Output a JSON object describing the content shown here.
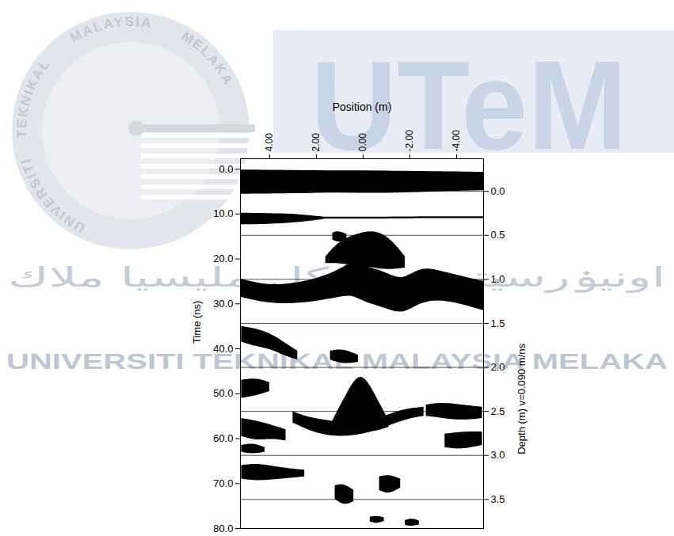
{
  "chart_data": {
    "type": "area",
    "x_label": "Position (m)",
    "y_label": "Time (ns)",
    "y2_label": "Depth (m) v=0.090 m/ns",
    "xlim": [
      5.25,
      -5.15
    ],
    "xticks": [
      {
        "value": 4,
        "label": "4.00"
      },
      {
        "value": 2,
        "label": "2.00"
      },
      {
        "value": 0,
        "label": "0.00"
      },
      {
        "value": -2,
        "label": "-2.00"
      },
      {
        "value": -4,
        "label": "-4.00"
      }
    ],
    "ylim": [
      -2.3,
      80
    ],
    "yticks": [
      {
        "value": 0,
        "label": "0.0"
      },
      {
        "value": 10,
        "label": "10.0"
      },
      {
        "value": 20,
        "label": "20.0"
      },
      {
        "value": 30,
        "label": "30.0"
      },
      {
        "value": 40,
        "label": "40.0"
      },
      {
        "value": 50,
        "label": "50.0"
      },
      {
        "value": 60,
        "label": "60.0"
      },
      {
        "value": 70,
        "label": "70.0"
      },
      {
        "value": 80,
        "label": "80.0"
      }
    ],
    "y2lim": [
      -0.37,
      3.83
    ],
    "y2ticks": [
      {
        "value": 0,
        "label": "0.0"
      },
      0.5,
      {
        "value": 1,
        "label": "1.0"
      },
      1.5,
      {
        "value": 2,
        "label": "2.0"
      },
      2.5,
      {
        "value": 3,
        "label": "3.0"
      },
      3.5
    ],
    "grid": true,
    "color": "#000000",
    "series": [
      {
        "x": [
          5.25,
          3,
          1,
          -1,
          -3,
          -5.15
        ],
        "y1": [
          0.2,
          0.3,
          0.4,
          0.4,
          0.6,
          0.7
        ],
        "y2": [
          5.6,
          5.5,
          5.2,
          5.5,
          5.0,
          4.8
        ]
      },
      {
        "x": [
          5.25,
          4,
          3,
          2.2,
          1.6
        ],
        "y1": [
          9.8,
          9.9,
          10.0,
          10.4,
          10.7
        ],
        "y2": [
          12.4,
          12.3,
          12.0,
          11.6,
          11.1
        ]
      },
      {
        "x": [
          1.6,
          -1,
          -3,
          -5.15
        ],
        "y1": [
          10.7,
          10.7,
          10.6,
          10.6
        ],
        "y2": [
          11.1,
          11.1,
          11.0,
          11.0
        ]
      },
      {
        "x": [
          5.25,
          4,
          3,
          2,
          1,
          0.5,
          0,
          -1,
          -1.7,
          -2.5,
          -3.5,
          -5.15
        ],
        "y1": [
          24.5,
          26,
          25.5,
          24.5,
          22.5,
          20.5,
          21.5,
          23,
          25,
          21.5,
          23,
          25
        ],
        "y2": [
          28.5,
          30,
          30,
          29.5,
          28.5,
          28,
          29.5,
          31,
          32.5,
          29.5,
          29,
          31.5
        ]
      },
      {
        "x": [
          1.6,
          1.0,
          0.3,
          -0.5,
          -1.2,
          -1.8
        ],
        "y1": [
          19.5,
          16,
          14.5,
          13.5,
          15.5,
          19.5
        ],
        "y2": [
          21,
          21,
          21.5,
          22,
          22.5,
          22
        ]
      },
      {
        "x": [
          1.3,
          1.0,
          0.7
        ],
        "y1": [
          14.2,
          13.8,
          14.5
        ],
        "y2": [
          15.8,
          16.5,
          15.6
        ]
      },
      {
        "x": [
          5.2,
          4.6,
          4.0,
          3.4,
          2.8
        ],
        "y1": [
          35,
          35.5,
          36.5,
          38.5,
          40.5
        ],
        "y2": [
          38.5,
          39.5,
          40,
          41.5,
          42.5
        ]
      },
      {
        "x": [
          1.4,
          0.8,
          0.2
        ],
        "y1": [
          40.5,
          40,
          41.5
        ],
        "y2": [
          42.5,
          43.5,
          43
        ]
      },
      {
        "x": [
          5.2,
          4.6,
          4.0
        ],
        "y1": [
          47,
          46.5,
          47.5
        ],
        "y2": [
          51,
          50.5,
          49.5
        ]
      },
      {
        "x": [
          1.3,
          0.7,
          0.1,
          -0.5,
          -1.1
        ],
        "y1": [
          56,
          50,
          44.5,
          50,
          56
        ],
        "y2": [
          57.5,
          58.5,
          58.5,
          58.5,
          57.5
        ]
      },
      {
        "x": [
          3.0,
          2.2,
          1.4,
          0.5,
          -0.5,
          -1.6,
          -2.6
        ],
        "y1": [
          54,
          55.5,
          56,
          57,
          56,
          53.5,
          53
        ],
        "y2": [
          56.5,
          58.5,
          59.5,
          59.5,
          58.5,
          56,
          55
        ]
      },
      {
        "x": [
          -2.7,
          -3.4,
          -4.2,
          -5.1
        ],
        "y1": [
          52.5,
          52,
          52.5,
          53
        ],
        "y2": [
          55,
          55.5,
          56,
          55.5
        ]
      },
      {
        "x": [
          -3.5,
          -4.2,
          -5.1
        ],
        "y1": [
          59,
          58.5,
          58.5
        ],
        "y2": [
          62,
          62.5,
          61.5
        ]
      },
      {
        "x": [
          5.2,
          4.6,
          3.9,
          3.3
        ],
        "y1": [
          55.5,
          56,
          57,
          58
        ],
        "y2": [
          59.5,
          60.5,
          60,
          60.5
        ]
      },
      {
        "x": [
          5.2,
          4.7,
          4.2
        ],
        "y1": [
          61.5,
          61,
          62
        ],
        "y2": [
          63,
          63.5,
          63
        ]
      },
      {
        "x": [
          5.2,
          4.5,
          3.5,
          2.5
        ],
        "y1": [
          66,
          65.5,
          66.5,
          67
        ],
        "y2": [
          69,
          69.5,
          69,
          68.5
        ]
      },
      {
        "x": [
          1.2,
          0.8,
          0.4
        ],
        "y1": [
          70.5,
          70,
          71.5
        ],
        "y2": [
          73.5,
          75,
          74
        ]
      },
      {
        "x": [
          -0.7,
          -1.1,
          -1.6
        ],
        "y1": [
          68.5,
          68,
          69
        ],
        "y2": [
          71.5,
          72.5,
          71
        ]
      },
      {
        "x": [
          -0.3,
          -0.6,
          -0.9
        ],
        "y1": [
          77.5,
          77.2,
          77.6
        ],
        "y2": [
          78.5,
          79,
          78.4
        ]
      },
      {
        "x": [
          -1.8,
          -2.1,
          -2.4
        ],
        "y1": [
          78.2,
          77.8,
          78.3
        ],
        "y2": [
          79.3,
          79.6,
          79.2
        ]
      }
    ]
  },
  "watermark": {
    "logo_arc": {
      "left": "TEKNIKAL",
      "top": "MALAYSIA",
      "right": "MELAKA",
      "bottom": "UNIVERSITI"
    },
    "brand": "UTeM",
    "jawi": "اونيۏرسيتي تيكنيكل مليسيا ملاك",
    "name": "UNIVERSITI TEKNIKAL MALAYSIA MELAKA"
  }
}
